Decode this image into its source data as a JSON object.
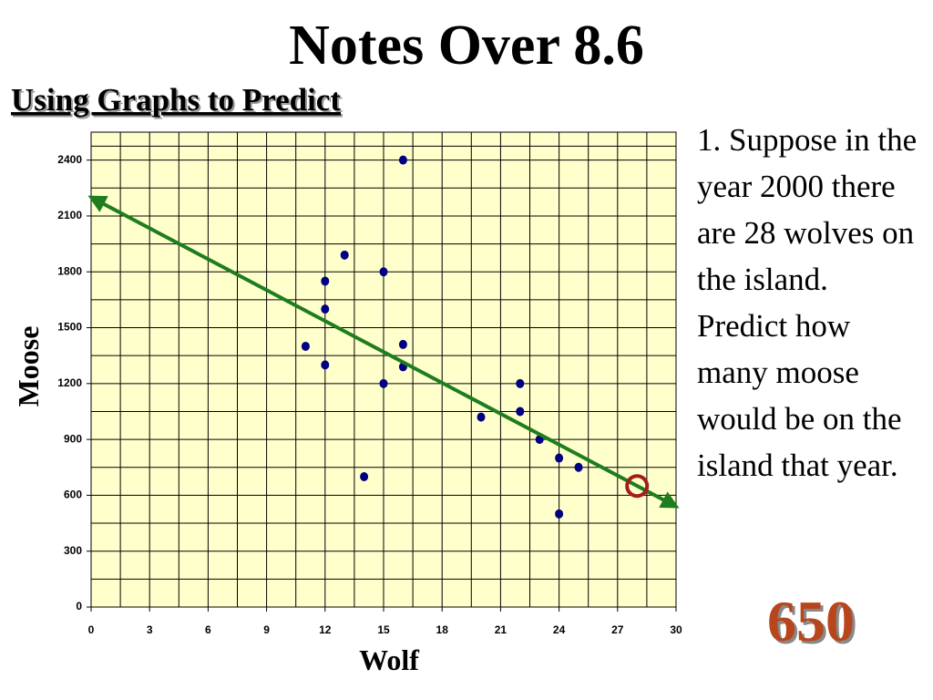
{
  "title": "Notes Over 8.6",
  "subtitle": "Using Graphs to Predict",
  "question": "1. Suppose in the year 2000 there are 28 wolves on the island. Predict how many moose would be on the island that year.",
  "chart_data": {
    "type": "scatter",
    "x_label": "Wolf",
    "y_label": "Moose",
    "x": [
      16,
      13,
      12,
      15,
      12,
      11,
      16,
      12,
      16,
      15,
      22,
      22,
      20,
      23,
      24,
      25,
      14,
      24
    ],
    "y": [
      2400,
      1890,
      1750,
      1800,
      1600,
      1400,
      1410,
      1300,
      1290,
      1200,
      1200,
      1050,
      1020,
      900,
      800,
      750,
      700,
      500
    ],
    "color": "#000080",
    "xlim": [
      0,
      30
    ],
    "ylim": [
      0,
      2550
    ],
    "xticks": [
      0,
      3,
      6,
      9,
      12,
      15,
      18,
      21,
      24,
      27,
      30
    ],
    "yticks": [
      0,
      300,
      600,
      900,
      1200,
      1500,
      1800,
      2100,
      2400
    ],
    "grid": true,
    "trend_line": {
      "x": [
        0,
        30
      ],
      "y": [
        2200,
        540
      ],
      "color": "#1e7d1e"
    },
    "prediction": {
      "x": 28,
      "y": 650,
      "color": "#a51c1c"
    }
  }
}
